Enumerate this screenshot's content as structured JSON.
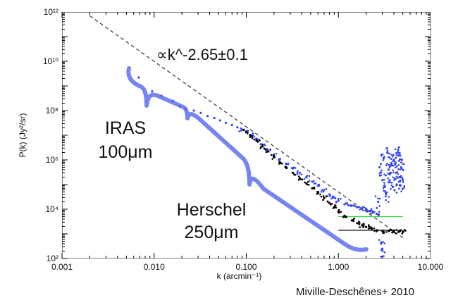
{
  "chart_data": {
    "type": "scatter",
    "xscale": "log",
    "yscale": "log",
    "xlim": [
      0.001,
      10.0
    ],
    "ylim": [
      100,
      1000000000000
    ],
    "xlabel": "k (arcmin⁻¹)",
    "ylabel": "P(k) (Jy²/sr)",
    "x_ticks": [
      0.001,
      0.01,
      0.1,
      1.0,
      10.0
    ],
    "x_tick_labels": [
      "0.001",
      "0.010",
      "0.100",
      "1.000",
      "10.000"
    ],
    "y_ticks": [
      100,
      10000,
      1000000,
      100000000,
      10000000000,
      1000000000000
    ],
    "y_tick_labels": [
      "10²",
      "10⁴",
      "10⁶",
      "10⁸",
      "10¹⁰",
      "10¹²"
    ],
    "annotations": {
      "power_law": "∝k^-2.65±0.1",
      "iras_line1": "IRAS",
      "iras_line2": "100μm",
      "herschel_line1": "Herschel",
      "herschel_line2": "250μm",
      "citation": "Miville-Deschênes+ 2010"
    },
    "power_law_fit": {
      "slope": -2.65,
      "k": [
        0.002,
        5.0
      ],
      "p": [
        700000000000,
        700
      ]
    },
    "series": [
      {
        "color": "#3344ee",
        "x": [
          0.0068,
          0.0095,
          0.012,
          0.016,
          0.019,
          0.022,
          0.027,
          0.032,
          0.038,
          0.045,
          0.052,
          0.06,
          0.07,
          0.08,
          0.09,
          0.1,
          0.115,
          0.13,
          0.15,
          0.17,
          0.2,
          0.23,
          0.27,
          0.32,
          0.38,
          0.45,
          0.52,
          0.6,
          0.7,
          0.8,
          0.9,
          1.0,
          1.2,
          1.4,
          1.6,
          1.8,
          2.0,
          2.2,
          2.4,
          2.6
        ],
        "y": [
          2200000000,
          600000000,
          400000000,
          250000000,
          150000000,
          120000000,
          100000000,
          80000000,
          60000000,
          50000000,
          40000000,
          32000000,
          26000000,
          21000000,
          17000000,
          14000000,
          10000000,
          7000000,
          4000000,
          2500000,
          1500000,
          1000000,
          700000,
          450000,
          300000,
          200000,
          130000,
          90000,
          60000,
          40000,
          30000,
          22000,
          17000,
          14000,
          12000,
          10500,
          9500,
          8500,
          7500,
          6500
        ]
      },
      {
        "color": "#000000",
        "x": [
          0.1,
          0.115,
          0.13,
          0.15,
          0.17,
          0.2,
          0.23,
          0.27,
          0.32,
          0.38,
          0.45,
          0.52,
          0.6,
          0.7,
          0.8,
          0.9,
          1.0,
          1.2,
          1.4,
          1.6,
          1.8,
          2.0,
          2.3,
          2.6,
          3.0,
          3.5,
          4.0,
          4.5,
          5.0
        ],
        "y": [
          14000000,
          9000000,
          6000000,
          3500000,
          2200000,
          1300000,
          800000,
          500000,
          300000,
          180000,
          110000,
          70000,
          45000,
          28000,
          18000,
          12000,
          8000,
          5000,
          3500,
          2700,
          2200,
          1900,
          1600,
          1400,
          1300,
          1300,
          1200,
          1200,
          1200
        ]
      },
      {
        "color": "#3344ee",
        "x": [
          2.7,
          2.8,
          3.0,
          3.2,
          3.4,
          3.6,
          3.8,
          4.0,
          4.2,
          4.4,
          4.6,
          4.8,
          5.0,
          3.1,
          3.3,
          3.5,
          3.7,
          3.9,
          4.1,
          4.3,
          4.5,
          4.7,
          4.9,
          2.9,
          3.0
        ],
        "y": [
          20000,
          500000,
          150000,
          80000,
          2000000,
          150000,
          600000,
          1000000,
          300000,
          2000000,
          200000,
          500000,
          150000,
          1200000,
          40000,
          400000,
          300000,
          80000,
          700000,
          100000,
          1500000,
          90000,
          1000000,
          400,
          250
        ]
      }
    ],
    "reference_lines": [
      {
        "color": "#33dd33",
        "y": 5000,
        "x": [
          1.0,
          5.0
        ]
      },
      {
        "color": "#000000",
        "y": 1400,
        "x": [
          1.0,
          5.0
        ]
      }
    ]
  }
}
